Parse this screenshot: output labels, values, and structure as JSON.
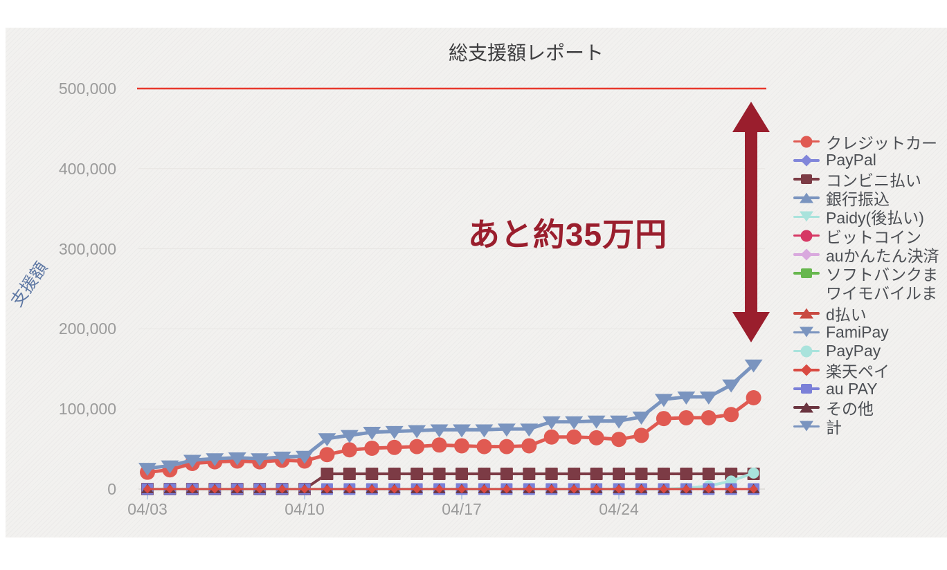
{
  "page": {
    "outer_background": "#ffffff",
    "canvas_background": "#f2f1ef"
  },
  "chart_data": {
    "type": "line",
    "title": "総支援額レポート",
    "ylabel": "支援額",
    "ylim": [
      0,
      500000
    ],
    "y_tick_values": [
      500000,
      400000,
      300000,
      200000,
      100000,
      0
    ],
    "y_tick_labels": [
      "500,000",
      "400,000",
      "300,000",
      "200,000",
      "100,000",
      "0"
    ],
    "x_tick_labels": [
      "04/03",
      "04/10",
      "04/17",
      "04/24"
    ],
    "x_tick_day_indices": [
      0,
      7,
      14,
      21
    ],
    "n_points": 28,
    "grid": true,
    "legend_position": "right",
    "goal_line": {
      "value": 500000,
      "color": "#e8382c"
    },
    "annotation": {
      "text": "あと約35万円",
      "color": "#9a1e2d"
    },
    "arrow": {
      "from_value": 500000,
      "to_value": 183000,
      "color": "#9a1e2d"
    },
    "axis_text_color": "#9b9b9b",
    "tick_mark_color": "#b9cbe5",
    "series": [
      {
        "id": "credit_card",
        "label": "クレジットカー",
        "marker": "circle",
        "color": "#e05a52",
        "values": [
          21000,
          24000,
          32000,
          34000,
          35000,
          34000,
          36000,
          35000,
          43000,
          49000,
          51000,
          52000,
          53000,
          55000,
          54000,
          53000,
          53000,
          54000,
          65000,
          65000,
          64000,
          62000,
          67000,
          88000,
          89000,
          89000,
          93000,
          114000
        ]
      },
      {
        "id": "paypal",
        "label": "PayPal",
        "marker": "diamond",
        "color": "#8186da",
        "constant_value": 0
      },
      {
        "id": "konbini",
        "label": "コンビニ払い",
        "marker": "square",
        "color": "#7c3b45",
        "values": [
          0,
          0,
          0,
          0,
          0,
          0,
          0,
          0,
          19000,
          19000,
          19000,
          19000,
          19000,
          19000,
          19000,
          19000,
          19000,
          19000,
          19000,
          19000,
          19000,
          19000,
          19000,
          19000,
          19000,
          19000,
          19000,
          19000
        ]
      },
      {
        "id": "bank_transfer",
        "label": "銀行振込",
        "marker": "triangle-up",
        "color": "#7a94bf",
        "constant_value": 0
      },
      {
        "id": "paidy",
        "label": "Paidy(後払い)",
        "marker": "triangle-down",
        "color": "#a9e3dc",
        "constant_value": 0
      },
      {
        "id": "bitcoin",
        "label": "ビットコイン",
        "marker": "circle",
        "color": "#d63864",
        "constant_value": 0
      },
      {
        "id": "au_kantan",
        "label": "auかんたん決済",
        "marker": "diamond",
        "color": "#d9a9de",
        "constant_value": 0
      },
      {
        "id": "softbank",
        "label_lines": [
          "ソフトバンクま",
          "ワイモバイルま"
        ],
        "marker": "square",
        "color": "#67b74e",
        "constant_value": 0
      },
      {
        "id": "d_barai",
        "label": "d払い",
        "marker": "triangle-up",
        "color": "#c94a42",
        "constant_value": 0
      },
      {
        "id": "famipay",
        "label": "FamiPay",
        "marker": "triangle-down",
        "color": "#7a94bf",
        "constant_value": 0
      },
      {
        "id": "paypay",
        "label": "PayPay",
        "marker": "circle",
        "color": "#a9e3dc",
        "values": [
          0,
          0,
          0,
          0,
          0,
          0,
          0,
          0,
          0,
          0,
          0,
          0,
          0,
          0,
          0,
          0,
          0,
          0,
          0,
          0,
          0,
          0,
          0,
          0,
          1000,
          4000,
          10000,
          20000
        ]
      },
      {
        "id": "rakuten_pay",
        "label": "楽天ペイ",
        "marker": "diamond",
        "color": "#d94a42",
        "constant_value": 0
      },
      {
        "id": "au_pay",
        "label": "au PAY",
        "marker": "square",
        "color": "#7b80d8",
        "constant_value": 0
      },
      {
        "id": "sonota",
        "label": "その他",
        "marker": "triangle-up",
        "color": "#6b3540",
        "constant_value": 0
      },
      {
        "id": "kei",
        "label": "計",
        "marker": "triangle-down",
        "color": "#7a94bf",
        "values": [
          26000,
          29000,
          36000,
          38000,
          39000,
          38000,
          40000,
          41000,
          63000,
          67000,
          71000,
          72000,
          73000,
          74000,
          74000,
          74000,
          75000,
          75000,
          84000,
          84000,
          85000,
          85000,
          90000,
          112000,
          115000,
          115000,
          130000,
          155000
        ]
      }
    ],
    "paint_order": [
      "paypal",
      "bank_transfer",
      "paidy",
      "au_kantan",
      "softbank",
      "d_barai",
      "famipay",
      "konbini",
      "paypay",
      "au_pay",
      "sonota",
      "bitcoin",
      "rakuten_pay",
      "credit_card",
      "kei"
    ]
  }
}
